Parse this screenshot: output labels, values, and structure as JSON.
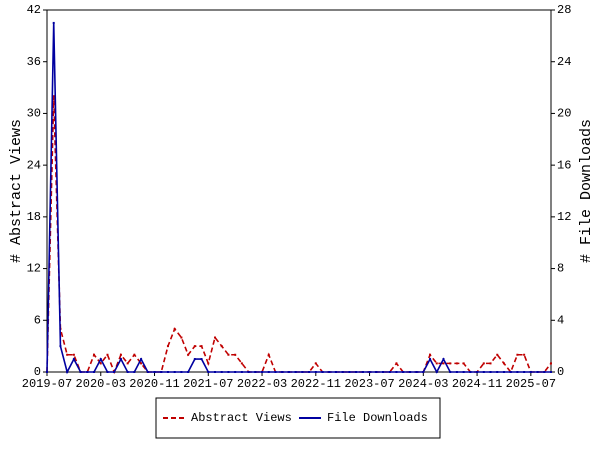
{
  "chart_data": {
    "type": "line",
    "ylabel": "# Abstract Views",
    "y2label": "# File Downloads",
    "x": [
      "2019-07",
      "2019-08",
      "2019-09",
      "2019-10",
      "2019-11",
      "2019-12",
      "2020-01",
      "2020-02",
      "2020-03",
      "2020-04",
      "2020-05",
      "2020-06",
      "2020-07",
      "2020-08",
      "2020-09",
      "2020-10",
      "2020-11",
      "2020-12",
      "2021-01",
      "2021-02",
      "2021-03",
      "2021-04",
      "2021-05",
      "2021-06",
      "2021-07",
      "2021-08",
      "2021-09",
      "2021-10",
      "2021-11",
      "2021-12",
      "2022-01",
      "2022-02",
      "2022-03",
      "2022-04",
      "2022-05",
      "2022-06",
      "2022-07",
      "2022-08",
      "2022-09",
      "2022-10",
      "2022-11",
      "2022-12",
      "2023-01",
      "2023-02",
      "2023-03",
      "2023-04",
      "2023-05",
      "2023-06",
      "2023-07",
      "2023-08",
      "2023-09",
      "2023-10",
      "2023-11",
      "2023-12",
      "2024-01",
      "2024-02",
      "2024-03",
      "2024-04",
      "2024-05",
      "2024-06",
      "2024-07",
      "2024-08",
      "2024-09",
      "2024-10",
      "2024-11",
      "2024-12",
      "2025-01",
      "2025-02",
      "2025-03",
      "2025-04",
      "2025-05",
      "2025-06",
      "2025-07",
      "2025-08",
      "2025-09",
      "2025-10"
    ],
    "xlim": [
      "2019-07",
      "2025-10"
    ],
    "xticks": [
      "2019-07",
      "2020-03",
      "2020-11",
      "2021-07",
      "2022-03",
      "2022-11",
      "2023-07",
      "2024-03",
      "2024-11",
      "2025-07"
    ],
    "ylim": [
      0,
      42
    ],
    "yticks": [
      0,
      6,
      12,
      18,
      24,
      30,
      36,
      42
    ],
    "y2lim": [
      0,
      28
    ],
    "y2ticks": [
      0,
      4,
      8,
      12,
      16,
      20,
      24,
      28
    ],
    "series": [
      {
        "name": "Abstract Views",
        "color": "#c00000",
        "dash": true,
        "values": [
          0,
          32,
          5,
          2,
          2,
          0,
          0,
          2,
          1,
          2,
          0,
          2,
          1,
          2,
          1,
          0,
          0,
          0,
          3,
          5,
          4,
          2,
          3,
          3,
          1,
          4,
          3,
          2,
          2,
          1,
          0,
          0,
          0,
          2,
          0,
          0,
          0,
          0,
          0,
          0,
          1,
          0,
          0,
          0,
          0,
          0,
          0,
          0,
          0,
          0,
          0,
          0,
          1,
          0,
          0,
          0,
          0,
          2,
          1,
          1,
          1,
          1,
          1,
          0,
          0,
          1,
          1,
          2,
          1,
          0,
          2,
          2,
          0,
          0,
          0,
          1
        ]
      },
      {
        "name": "File Downloads",
        "color": "#0000a0",
        "axis": "y2",
        "values": [
          0,
          27,
          2,
          0,
          1,
          0,
          0,
          0,
          1,
          0,
          0,
          1,
          0,
          0,
          1,
          0,
          0,
          0,
          0,
          0,
          0,
          0,
          1,
          1,
          0,
          0,
          0,
          0,
          0,
          0,
          0,
          0,
          0,
          0,
          0,
          0,
          0,
          0,
          0,
          0,
          0,
          0,
          0,
          0,
          0,
          0,
          0,
          0,
          0,
          0,
          0,
          0,
          0,
          0,
          0,
          0,
          0,
          1,
          0,
          1,
          0,
          0,
          0,
          0,
          0,
          0,
          0,
          0,
          0,
          0,
          0,
          0,
          0,
          0,
          0,
          0
        ]
      }
    ]
  }
}
